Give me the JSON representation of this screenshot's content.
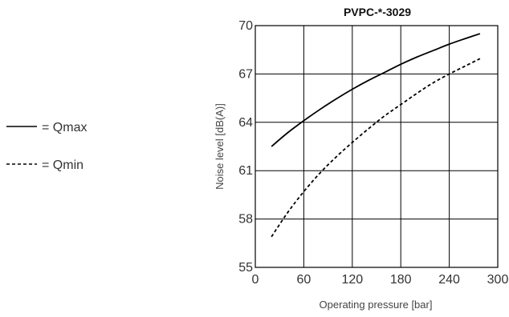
{
  "chart_data": {
    "type": "line",
    "title": "PVPC-*-3029",
    "xlabel": "Operating pressure  [bar]",
    "ylabel": "Noise level [dB(A)]",
    "xlim": [
      0,
      300
    ],
    "ylim": [
      55,
      70
    ],
    "x_ticks": [
      0,
      60,
      120,
      180,
      240,
      300
    ],
    "y_ticks": [
      55,
      58,
      61,
      64,
      67,
      70
    ],
    "grid": true,
    "legend_position": "left",
    "series": [
      {
        "name": "= Qmax",
        "line_style": "solid",
        "color": "#000000",
        "x": [
          20,
          40,
          60,
          80,
          100,
          120,
          140,
          160,
          180,
          200,
          220,
          240,
          260,
          278
        ],
        "y": [
          62.5,
          63.35,
          64.1,
          64.8,
          65.45,
          66.05,
          66.6,
          67.1,
          67.6,
          68.05,
          68.45,
          68.85,
          69.2,
          69.5
        ]
      },
      {
        "name": "= Qmin",
        "line_style": "dashed",
        "color": "#000000",
        "x": [
          20,
          40,
          60,
          80,
          100,
          120,
          140,
          160,
          180,
          200,
          220,
          240,
          260,
          278
        ],
        "y": [
          56.9,
          58.4,
          59.7,
          60.85,
          61.85,
          62.75,
          63.6,
          64.4,
          65.1,
          65.8,
          66.45,
          67.0,
          67.5,
          67.95
        ]
      }
    ]
  }
}
